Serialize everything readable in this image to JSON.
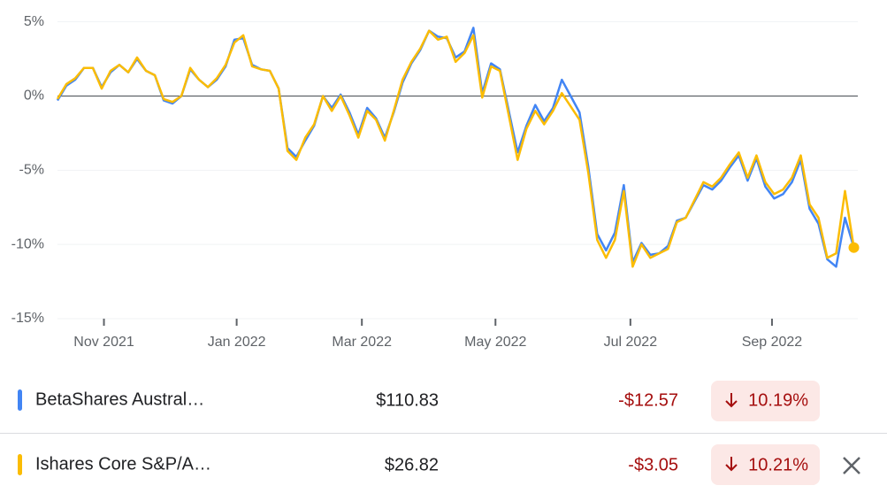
{
  "chart_data": {
    "type": "line",
    "x": [
      0,
      4,
      8,
      12,
      16,
      20,
      24,
      28,
      32,
      36,
      40,
      44,
      48,
      52,
      56,
      60,
      64,
      68,
      72,
      76,
      80,
      84,
      88,
      92,
      96,
      100,
      104,
      108,
      112,
      116,
      120,
      124,
      128,
      132,
      136,
      140,
      144,
      148,
      152,
      156,
      160,
      164,
      168,
      172,
      176,
      180,
      184,
      188,
      192,
      196,
      200,
      204,
      208,
      212,
      216,
      220,
      224,
      228,
      232,
      236,
      240,
      244,
      248,
      252,
      256,
      260,
      264,
      268,
      272,
      276,
      280,
      284,
      288,
      292,
      296,
      300,
      304,
      308,
      312,
      316,
      320,
      324,
      328,
      332,
      336,
      340,
      344,
      348,
      352,
      356,
      360
    ],
    "xlim": [
      0,
      361
    ],
    "xticks": [
      {
        "value": 21,
        "label": "Nov 2021"
      },
      {
        "value": 81,
        "label": "Jan 2022"
      },
      {
        "value": 137.6,
        "label": "Mar 2022"
      },
      {
        "value": 198,
        "label": "May 2022"
      },
      {
        "value": 259,
        "label": "Jul 2022"
      },
      {
        "value": 323,
        "label": "Sep 2022"
      }
    ],
    "ylim": [
      -15,
      5.1
    ],
    "yticks": [
      {
        "value": 5,
        "label": "5%"
      },
      {
        "value": 0,
        "label": "0%"
      },
      {
        "value": -5,
        "label": "-5%"
      },
      {
        "value": -10,
        "label": "-10%"
      },
      {
        "value": -15,
        "label": "-15%"
      }
    ],
    "grid": true,
    "series": [
      {
        "name": "BetaShares Austral…",
        "color": "#4285f4",
        "values": [
          -0.3,
          0.7,
          1.1,
          1.9,
          1.9,
          0.6,
          1.6,
          2.1,
          1.6,
          2.5,
          1.7,
          1.4,
          -0.3,
          -0.5,
          0,
          1.8,
          1.1,
          0.6,
          1.1,
          2.0,
          3.8,
          3.9,
          2.1,
          1.8,
          1.7,
          0.5,
          -3.5,
          -4.1,
          -3.0,
          -2.0,
          0,
          -0.8,
          0.1,
          -1.1,
          -2.6,
          -0.8,
          -1.5,
          -2.8,
          -1.1,
          0.9,
          2.2,
          3.1,
          4.4,
          4.0,
          3.9,
          2.6,
          3.0,
          4.6,
          0.2,
          2.2,
          1.8,
          -1.0,
          -3.8,
          -2.0,
          -0.6,
          -1.7,
          -0.8,
          1.1,
          0,
          -1.1,
          -4.8,
          -9.3,
          -10.4,
          -9.2,
          -6.0,
          -11.2,
          -9.9,
          -10.7,
          -10.6,
          -10.1,
          -8.4,
          -8.2,
          -7.1,
          -6.0,
          -6.3,
          -5.7,
          -4.8,
          -4.0,
          -5.7,
          -4.2,
          -6.1,
          -6.9,
          -6.6,
          -5.8,
          -4.3,
          -7.6,
          -8.6,
          -11.0,
          -11.5,
          -8.2,
          -10.19
        ]
      },
      {
        "name": "Ishares Core S&P/A…",
        "color": "#fbbc04",
        "values": [
          -0.2,
          0.8,
          1.2,
          1.9,
          1.9,
          0.5,
          1.7,
          2.1,
          1.6,
          2.6,
          1.7,
          1.4,
          -0.2,
          -0.4,
          0,
          1.9,
          1.1,
          0.6,
          1.2,
          2.1,
          3.6,
          4.1,
          2.0,
          1.8,
          1.7,
          0.5,
          -3.7,
          -4.3,
          -2.8,
          -1.9,
          0,
          -1.0,
          0,
          -1.3,
          -2.8,
          -1.0,
          -1.6,
          -3.0,
          -1.0,
          1.1,
          2.3,
          3.2,
          4.4,
          3.8,
          4.0,
          2.3,
          2.9,
          4.1,
          -0.1,
          2.0,
          1.7,
          -1.3,
          -4.3,
          -2.2,
          -1.0,
          -1.9,
          -1.0,
          0.2,
          -0.7,
          -1.6,
          -5.2,
          -9.7,
          -10.9,
          -9.7,
          -6.4,
          -11.5,
          -10.0,
          -10.9,
          -10.6,
          -10.3,
          -8.5,
          -8.2,
          -7.0,
          -5.8,
          -6.1,
          -5.5,
          -4.6,
          -3.8,
          -5.5,
          -4.0,
          -5.8,
          -6.6,
          -6.3,
          -5.5,
          -4.0,
          -7.3,
          -8.2,
          -10.9,
          -10.6,
          -6.4,
          -10.21
        ]
      }
    ]
  },
  "table": {
    "rows": [
      {
        "price": "$110.83",
        "change": "-$12.57",
        "change_pct": "10.19%"
      },
      {
        "price": "$26.82",
        "change": "-$3.05",
        "change_pct": "10.21%"
      }
    ]
  }
}
